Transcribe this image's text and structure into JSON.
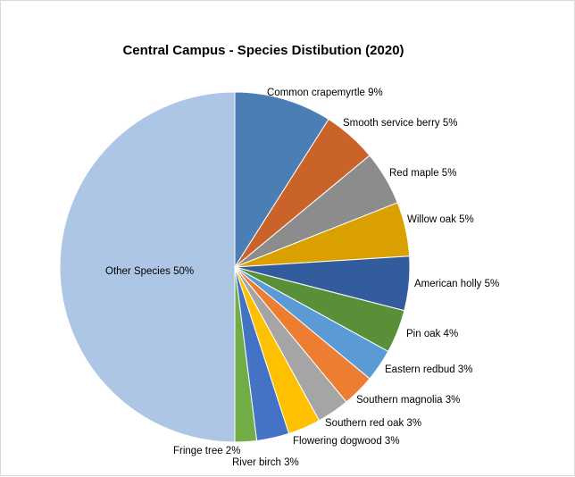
{
  "chart_data": {
    "type": "pie",
    "title": "Central Campus - Species Distibution (2020)",
    "slices": [
      {
        "name": "Common crapemyrtle",
        "value": 9,
        "label": "Common crapemyrtle 9%",
        "color": "#4a7eb4"
      },
      {
        "name": "Smooth service berry",
        "value": 5,
        "label": "Smooth service berry 5%",
        "color": "#c9632a"
      },
      {
        "name": "Red maple",
        "value": 5,
        "label": "Red maple 5%",
        "color": "#8c8c8c"
      },
      {
        "name": "Willow oak",
        "value": 5,
        "label": "Willow oak 5%",
        "color": "#d9a000"
      },
      {
        "name": "American holly",
        "value": 5,
        "label": "American holly 5%",
        "color": "#335c9e"
      },
      {
        "name": "Pin oak",
        "value": 4,
        "label": "Pin oak 4%",
        "color": "#5a8f3a"
      },
      {
        "name": "Eastern redbud",
        "value": 3,
        "label": "Eastern redbud 3%",
        "color": "#5b9bd5"
      },
      {
        "name": "Southern magnolia",
        "value": 3,
        "label": "Southern magnolia 3%",
        "color": "#ed7d31"
      },
      {
        "name": "Southern red oak",
        "value": 3,
        "label": "Southern red oak 3%",
        "color": "#a5a5a5"
      },
      {
        "name": "Flowering dogwood",
        "value": 3,
        "label": "Flowering dogwood 3%",
        "color": "#ffc000"
      },
      {
        "name": "River birch",
        "value": 3,
        "label": "River birch 3%",
        "color": "#4472c4"
      },
      {
        "name": "Fringe tree",
        "value": 2,
        "label": "Fringe tree 2%",
        "color": "#70ad47"
      },
      {
        "name": "Other Species",
        "value": 50,
        "label": "Other Species 50%",
        "color": "#aec6e6"
      }
    ],
    "start_angle": "12 o'clock",
    "direction": "clockwise",
    "legend": "none"
  }
}
